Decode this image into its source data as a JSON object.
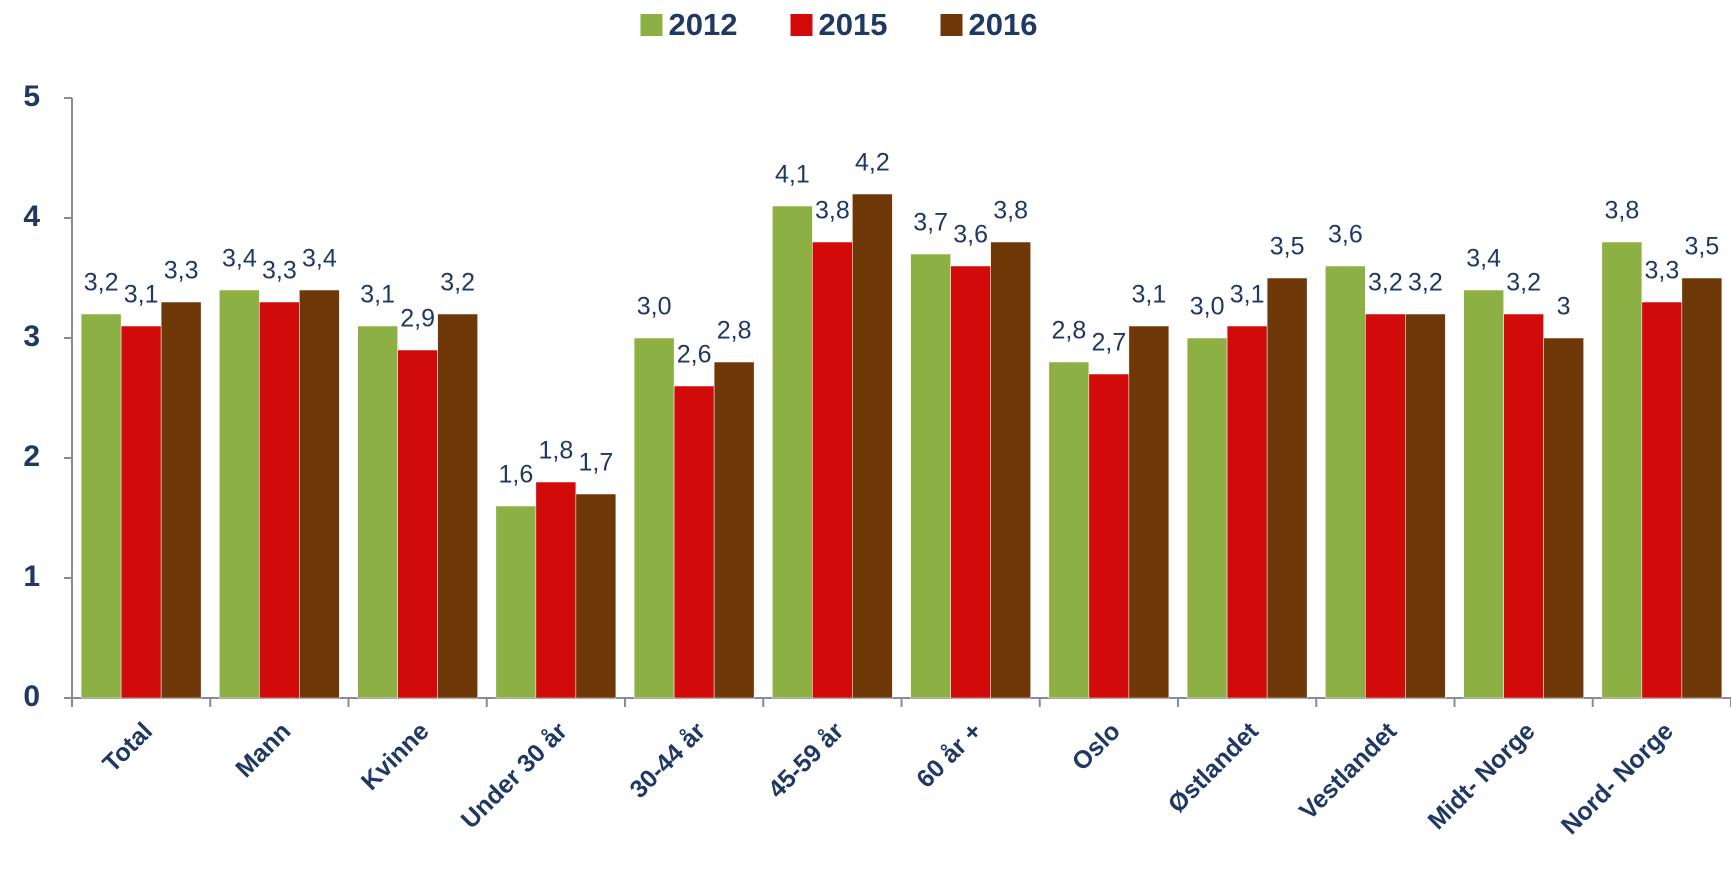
{
  "chart_data": {
    "type": "bar",
    "categories": [
      "Total",
      "Mann",
      "Kvinne",
      "Under 30 år",
      "30-44 år",
      "45-59 år",
      "60 år +",
      "Oslo",
      "Østlandet",
      "Vestlandet",
      "Midt- Norge",
      "Nord- Norge"
    ],
    "series": [
      {
        "name": "2012",
        "color": "#8cb043",
        "values": [
          3.2,
          3.4,
          3.1,
          1.6,
          3.0,
          4.1,
          3.7,
          2.8,
          3.0,
          3.6,
          3.4,
          3.8
        ],
        "value_labels": [
          "3,2",
          "3,4",
          "3,1",
          "1,6",
          "3,0",
          "4,1",
          "3,7",
          "2,8",
          "3,0",
          "3,6",
          "3,4",
          "3,8"
        ]
      },
      {
        "name": "2015",
        "color": "#d10a0a",
        "values": [
          3.1,
          3.3,
          2.9,
          1.8,
          2.6,
          3.8,
          3.6,
          2.7,
          3.1,
          3.2,
          3.2,
          3.3
        ],
        "value_labels": [
          "3,1",
          "3,3",
          "2,9",
          "1,8",
          "2,6",
          "3,8",
          "3,6",
          "2,7",
          "3,1",
          "3,2",
          "3,2",
          "3,3"
        ]
      },
      {
        "name": "2016",
        "color": "#6e3808",
        "values": [
          3.3,
          3.4,
          3.2,
          1.7,
          2.8,
          4.2,
          3.8,
          3.1,
          3.5,
          3.2,
          3,
          3.5
        ],
        "value_labels": [
          "3,3",
          "3,4",
          "3,2",
          "1,7",
          "2,8",
          "4,2",
          "3,8",
          "3,1",
          "3,5",
          "3,2",
          "3",
          "3,5"
        ]
      }
    ],
    "ylim": [
      0,
      5
    ],
    "yticks": [
      0,
      1,
      2,
      3,
      4,
      5
    ],
    "grid": false,
    "legend": "top"
  }
}
